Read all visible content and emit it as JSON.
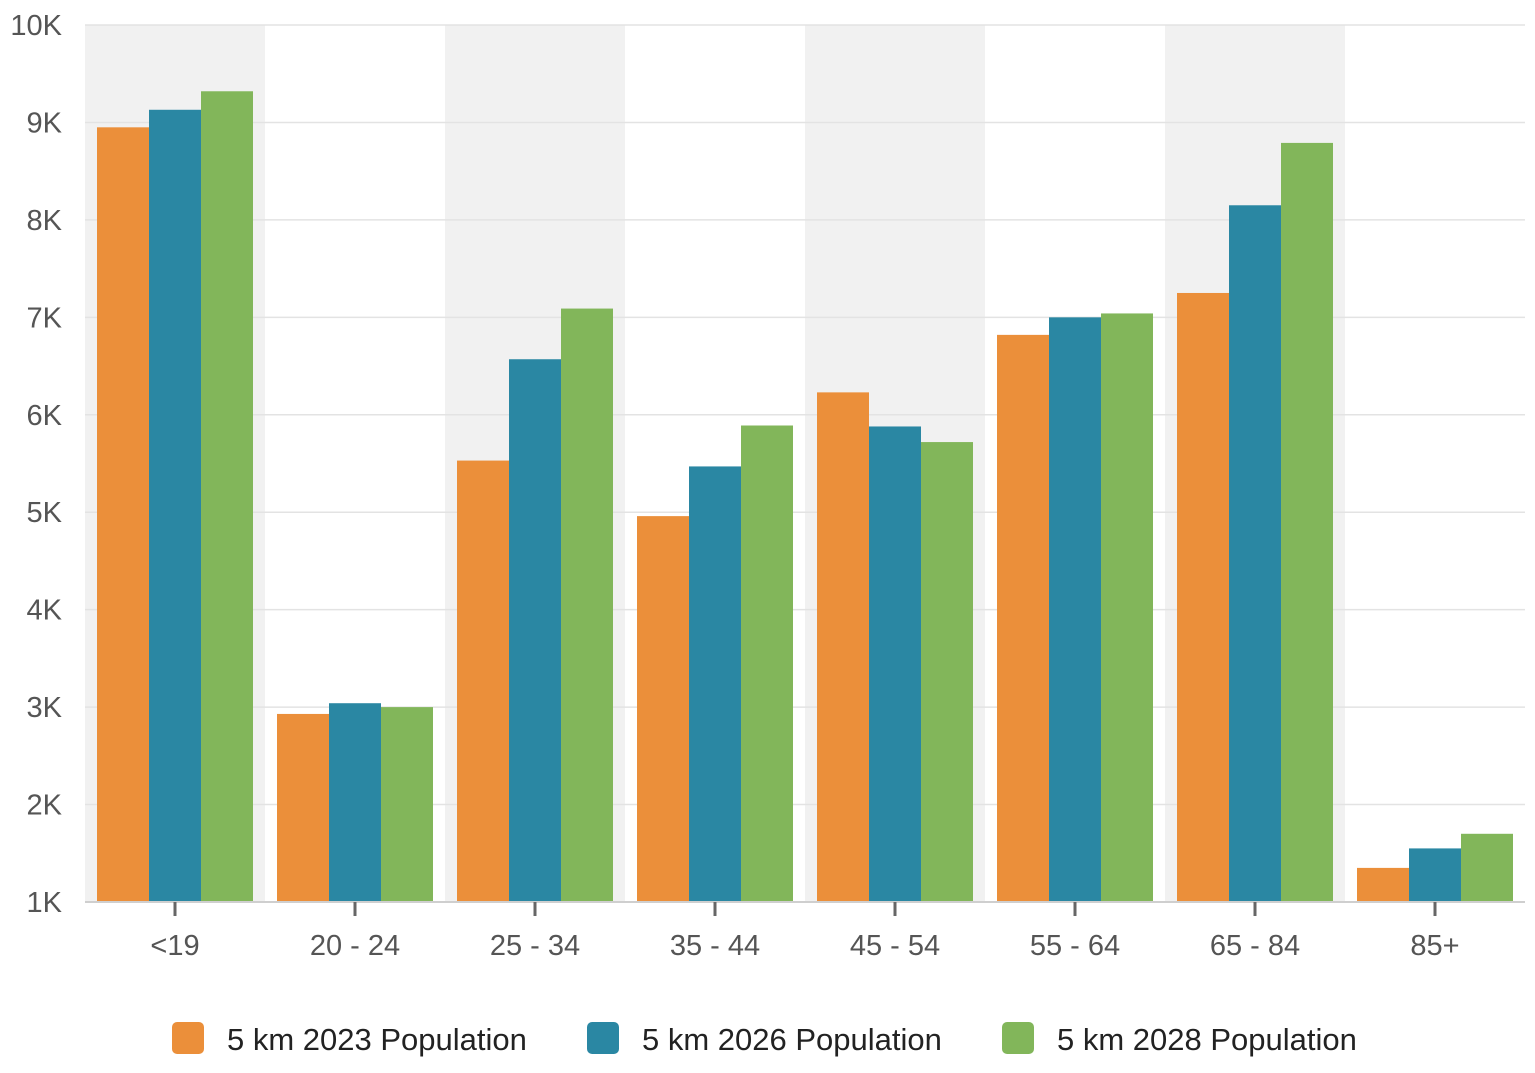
{
  "chart_data": {
    "type": "bar",
    "categories": [
      "<19",
      "20 - 24",
      "25 - 34",
      "35 - 44",
      "45 - 54",
      "55 - 64",
      "65 - 84",
      "85+"
    ],
    "series": [
      {
        "name": "5 km 2023 Population",
        "color": "#EB8F3A",
        "values": [
          8950,
          2930,
          5530,
          4960,
          6230,
          6820,
          7250,
          1350
        ]
      },
      {
        "name": "5 km 2026 Population",
        "color": "#2A87A3",
        "values": [
          9130,
          3040,
          6570,
          5470,
          5880,
          7000,
          8150,
          1550
        ]
      },
      {
        "name": "5 km 2028 Population",
        "color": "#82B65A",
        "values": [
          9320,
          3000,
          7090,
          5890,
          5720,
          7040,
          8790,
          1700
        ]
      }
    ],
    "ylim": [
      1000,
      10000
    ],
    "yticks": [
      {
        "value": 1000,
        "label": "1K"
      },
      {
        "value": 2000,
        "label": "2K"
      },
      {
        "value": 3000,
        "label": "3K"
      },
      {
        "value": 4000,
        "label": "4K"
      },
      {
        "value": 5000,
        "label": "5K"
      },
      {
        "value": 6000,
        "label": "6K"
      },
      {
        "value": 7000,
        "label": "7K"
      },
      {
        "value": 8000,
        "label": "8K"
      },
      {
        "value": 9000,
        "label": "9K"
      },
      {
        "value": 10000,
        "label": "10K"
      }
    ],
    "grid": true,
    "alternating_column_shading": true,
    "shading_color": "#F1F1F1",
    "legend_position": "bottom"
  }
}
